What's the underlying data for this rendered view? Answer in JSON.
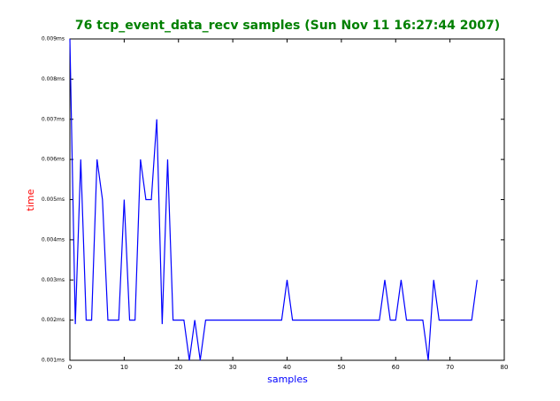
{
  "chart_data": {
    "type": "line",
    "title": "76 tcp_event_data_recv samples (Sun Nov 11 16:27:44 2007)",
    "xlabel": "samples",
    "ylabel": "time",
    "x": [
      0,
      1,
      2,
      3,
      4,
      5,
      6,
      7,
      8,
      9,
      10,
      11,
      12,
      13,
      14,
      15,
      16,
      17,
      18,
      19,
      20,
      21,
      22,
      23,
      24,
      25,
      26,
      27,
      28,
      29,
      30,
      31,
      32,
      33,
      34,
      35,
      36,
      37,
      38,
      39,
      40,
      41,
      42,
      43,
      44,
      45,
      46,
      47,
      48,
      49,
      50,
      51,
      52,
      53,
      54,
      55,
      56,
      57,
      58,
      59,
      60,
      61,
      62,
      63,
      64,
      65,
      66,
      67,
      68,
      69,
      70,
      71,
      72,
      73,
      74,
      75
    ],
    "series": [
      {
        "color": "#0000ff",
        "values": [
          0.009,
          0.0019,
          0.006,
          0.002,
          0.002,
          0.006,
          0.005,
          0.002,
          0.002,
          0.002,
          0.005,
          0.002,
          0.002,
          0.006,
          0.005,
          0.005,
          0.007,
          0.0019,
          0.006,
          0.002,
          0.002,
          0.002,
          0.001,
          0.002,
          0.001,
          0.002,
          0.002,
          0.002,
          0.002,
          0.002,
          0.002,
          0.002,
          0.002,
          0.002,
          0.002,
          0.002,
          0.002,
          0.002,
          0.002,
          0.002,
          0.003,
          0.002,
          0.002,
          0.002,
          0.002,
          0.002,
          0.002,
          0.002,
          0.002,
          0.002,
          0.002,
          0.002,
          0.002,
          0.002,
          0.002,
          0.002,
          0.002,
          0.002,
          0.003,
          0.002,
          0.002,
          0.003,
          0.002,
          0.002,
          0.002,
          0.002,
          0.001,
          0.003,
          0.002,
          0.002,
          0.002,
          0.002,
          0.002,
          0.002,
          0.002,
          0.003
        ]
      }
    ],
    "xlim": [
      0,
      80
    ],
    "xticks": [
      0,
      10,
      20,
      30,
      40,
      50,
      60,
      70,
      80
    ],
    "ylim": [
      0.001,
      0.009
    ],
    "yticks": [
      {
        "value": 0.001,
        "label": "0.001ms"
      },
      {
        "value": 0.002,
        "label": "0.002ms"
      },
      {
        "value": 0.003,
        "label": "0.003ms"
      },
      {
        "value": 0.004,
        "label": "0.004ms"
      },
      {
        "value": 0.005,
        "label": "0.005ms"
      },
      {
        "value": 0.006,
        "label": "0.006ms"
      },
      {
        "value": 0.007,
        "label": "0.007ms"
      },
      {
        "value": 0.008,
        "label": "0.008ms"
      },
      {
        "value": 0.009,
        "label": "0.009ms"
      }
    ],
    "grid": false
  }
}
